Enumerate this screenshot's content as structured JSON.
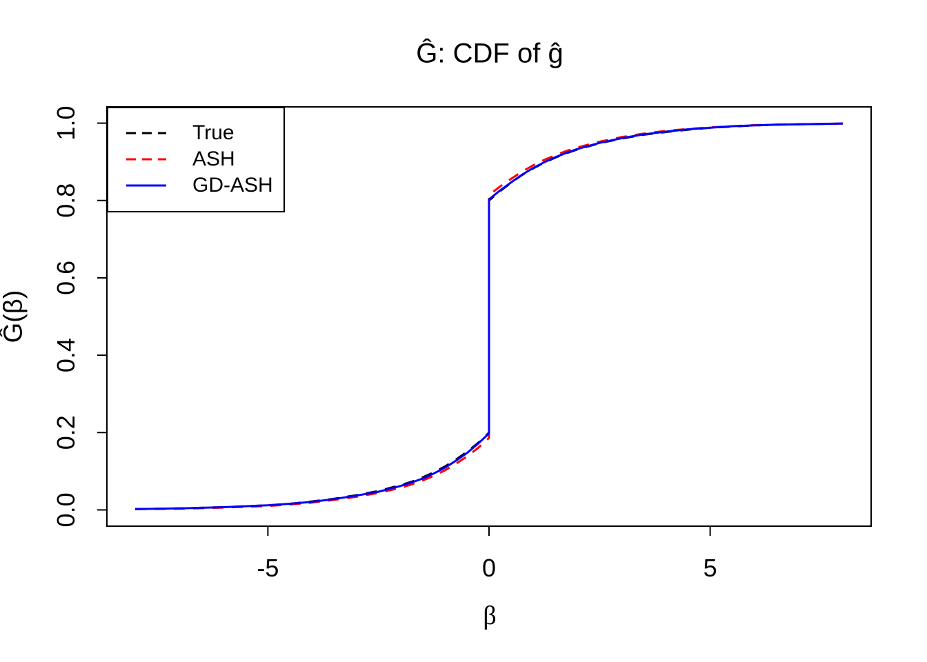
{
  "chart_data": {
    "type": "line",
    "title": "Ĝ: CDF of ĝ",
    "xlabel": "β",
    "ylabel": "Ĝ(β)",
    "xlim": [
      -8.64,
      8.64
    ],
    "ylim": [
      -0.042,
      1.042
    ],
    "x_ticks": [
      -5,
      0,
      5
    ],
    "x_tick_labels": [
      "-5",
      "0",
      "5"
    ],
    "y_ticks": [
      0,
      0.2,
      0.4,
      0.6,
      0.8,
      1
    ],
    "y_tick_labels": [
      "0.0",
      "0.2",
      "0.4",
      "0.6",
      "0.8",
      "1.0"
    ],
    "grid": false,
    "legend_position": "top-left",
    "description": "CDF curves with a jump discontinuity (point mass) at beta = 0",
    "jump_at": 0,
    "series": [
      {
        "name": "True",
        "color": "#000000",
        "linetype": "dashed",
        "x": [
          -8,
          -7,
          -6,
          -5,
          -4.5,
          -4,
          -3.5,
          -3,
          -2.5,
          -2,
          -1.75,
          -1.5,
          -1.25,
          -1,
          -0.75,
          -0.5,
          -0.25,
          0,
          0,
          0.25,
          0.5,
          0.75,
          1,
          1.25,
          1.5,
          1.75,
          2,
          2.5,
          3,
          3.5,
          4,
          4.5,
          5,
          5.5,
          6,
          6.5,
          7,
          7.5,
          8
        ],
        "y": [
          0.002,
          0.004,
          0.007,
          0.012,
          0.016,
          0.022,
          0.029,
          0.038,
          0.049,
          0.064,
          0.073,
          0.084,
          0.097,
          0.112,
          0.13,
          0.15,
          0.173,
          0.2,
          0.8,
          0.824,
          0.846,
          0.866,
          0.883,
          0.898,
          0.911,
          0.922,
          0.932,
          0.948,
          0.96,
          0.97,
          0.977,
          0.983,
          0.988,
          0.991,
          0.994,
          0.996,
          0.997,
          0.998,
          0.999
        ]
      },
      {
        "name": "ASH",
        "color": "#FF0000",
        "linetype": "dashed",
        "x": [
          -8,
          -7,
          -6,
          -5,
          -4.5,
          -4,
          -3.5,
          -3,
          -2.5,
          -2,
          -1.75,
          -1.5,
          -1.25,
          -1,
          -0.75,
          -0.5,
          -0.25,
          0,
          0,
          0.25,
          0.5,
          0.75,
          1,
          1.25,
          1.5,
          1.75,
          2,
          2.5,
          3,
          3.5,
          4,
          4.5,
          5,
          5.5,
          6,
          6.5,
          7,
          7.5,
          8
        ],
        "y": [
          0.002,
          0.003,
          0.006,
          0.01,
          0.014,
          0.019,
          0.026,
          0.034,
          0.044,
          0.057,
          0.066,
          0.076,
          0.088,
          0.102,
          0.119,
          0.138,
          0.16,
          0.186,
          0.814,
          0.836,
          0.856,
          0.875,
          0.891,
          0.905,
          0.917,
          0.928,
          0.937,
          0.952,
          0.964,
          0.973,
          0.98,
          0.985,
          0.989,
          0.992,
          0.995,
          0.996,
          0.997,
          0.998,
          0.999
        ]
      },
      {
        "name": "GD-ASH",
        "color": "#0000FF",
        "linetype": "solid",
        "x": [
          -8,
          -7,
          -6,
          -5,
          -4.5,
          -4,
          -3.5,
          -3,
          -2.5,
          -2,
          -1.75,
          -1.5,
          -1.25,
          -1,
          -0.75,
          -0.5,
          -0.25,
          0,
          0,
          0.25,
          0.5,
          0.75,
          1,
          1.25,
          1.5,
          1.75,
          2,
          2.5,
          3,
          3.5,
          4,
          4.5,
          5,
          5.5,
          6,
          6.5,
          7,
          7.5,
          8
        ],
        "y": [
          0.002,
          0.004,
          0.007,
          0.012,
          0.016,
          0.021,
          0.028,
          0.037,
          0.047,
          0.062,
          0.071,
          0.081,
          0.094,
          0.109,
          0.127,
          0.147,
          0.171,
          0.198,
          0.803,
          0.826,
          0.847,
          0.867,
          0.884,
          0.899,
          0.912,
          0.923,
          0.933,
          0.949,
          0.961,
          0.971,
          0.978,
          0.984,
          0.988,
          0.992,
          0.994,
          0.996,
          0.997,
          0.998,
          0.999
        ]
      }
    ]
  }
}
